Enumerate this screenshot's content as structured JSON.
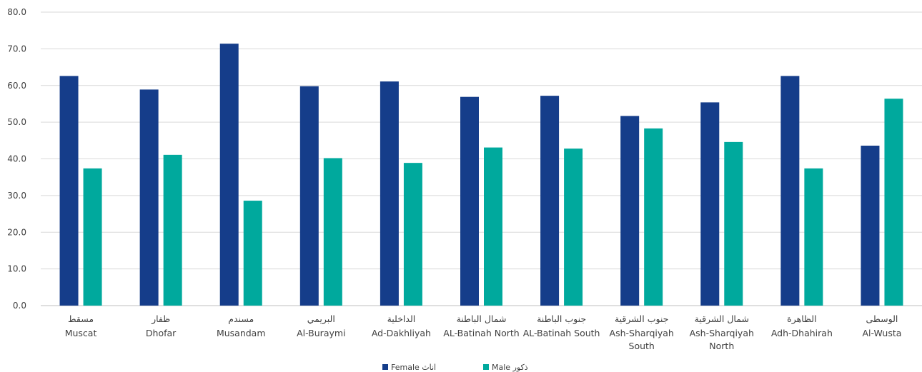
{
  "chart_data": {
    "type": "bar",
    "categories": [
      {
        "ar": "مسقط",
        "en": [
          "Muscat"
        ]
      },
      {
        "ar": "ظفار",
        "en": [
          "Dhofar"
        ]
      },
      {
        "ar": "مسندم",
        "en": [
          "Musandam"
        ]
      },
      {
        "ar": "البريمي",
        "en": [
          "Al-Buraymi"
        ]
      },
      {
        "ar": "الداخلية",
        "en": [
          "Ad-Dakhliyah"
        ]
      },
      {
        "ar": "شمال الباطنة",
        "en": [
          "AL-Batinah North"
        ]
      },
      {
        "ar": "جنوب الباطنة",
        "en": [
          "AL-Batinah South"
        ]
      },
      {
        "ar": "جنوب الشرقية",
        "en": [
          "Ash-Sharqiyah",
          "South"
        ]
      },
      {
        "ar": "شمال الشرقية",
        "en": [
          "Ash-Sharqiyah",
          "North"
        ]
      },
      {
        "ar": "الظاهرة",
        "en": [
          "Adh-Dhahirah"
        ]
      },
      {
        "ar": "الوسطى",
        "en": [
          "Al-Wusta"
        ]
      }
    ],
    "series": [
      {
        "name": "Female اناث",
        "color": "#153d8a",
        "values": [
          62.6,
          58.9,
          71.4,
          59.8,
          61.1,
          56.9,
          57.2,
          51.7,
          55.4,
          62.6,
          43.6
        ]
      },
      {
        "name": "Male ذكور",
        "color": "#00a99d",
        "values": [
          37.4,
          41.1,
          28.6,
          40.2,
          38.9,
          43.1,
          42.8,
          48.3,
          44.6,
          37.4,
          56.4
        ]
      }
    ],
    "yticks": [
      "0.0",
      "10.0",
      "20.0",
      "30.0",
      "40.0",
      "50.0",
      "60.0",
      "70.0",
      "80.0"
    ],
    "ylim": [
      0,
      80
    ],
    "grid": true,
    "legend_position": "bottom-center",
    "title": "",
    "xlabel": "",
    "ylabel": ""
  }
}
